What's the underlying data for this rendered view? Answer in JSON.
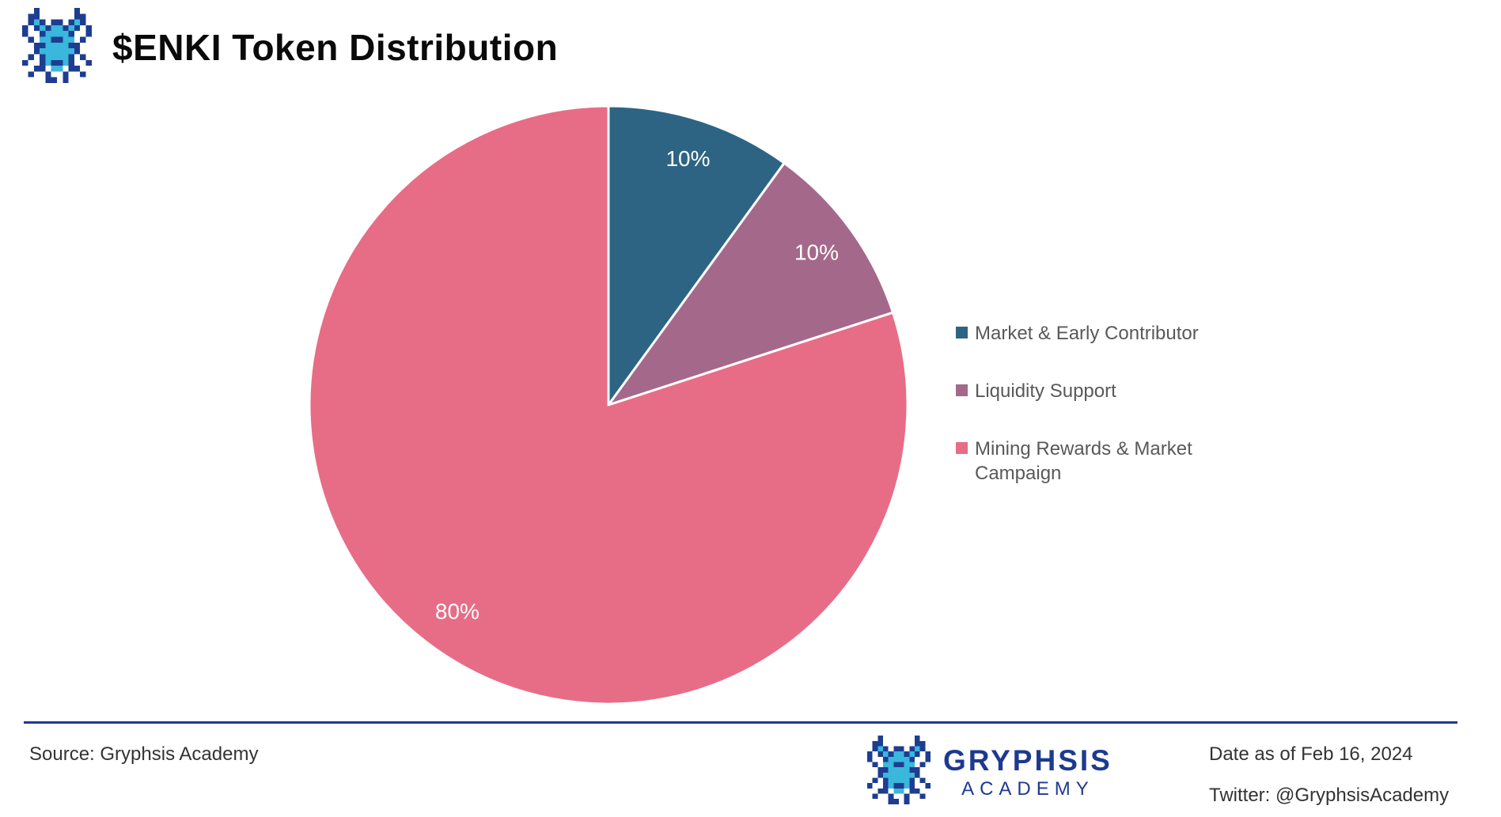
{
  "header": {
    "title": "$ENKI Token Distribution",
    "logo_icon": "gryphsis-dragon-icon"
  },
  "chart_data": {
    "type": "pie",
    "title": "$ENKI Token Distribution",
    "start_angle_deg": 0,
    "direction": "clockwise",
    "legend_position": "right",
    "label_color": "#ffffff",
    "slices": [
      {
        "label": "Market & Early Contributor",
        "value": 10,
        "display": "10%",
        "color": "#2d6484"
      },
      {
        "label": "Liquidity Support",
        "value": 10,
        "display": "10%",
        "color": "#a4698a"
      },
      {
        "label": "Mining Rewards & Market Campaign",
        "value": 80,
        "display": "80%",
        "color": "#e76d87"
      }
    ]
  },
  "footer": {
    "source": "Source: Gryphsis Academy",
    "brand_name": "GRYPHSIS",
    "brand_subtitle": "ACADEMY",
    "brand_logo_icon": "gryphsis-dragon-icon",
    "date": "Date as of Feb 16, 2024",
    "twitter": "Twitter: @GryphsisAcademy",
    "accent_color": "#1e3a8f"
  }
}
